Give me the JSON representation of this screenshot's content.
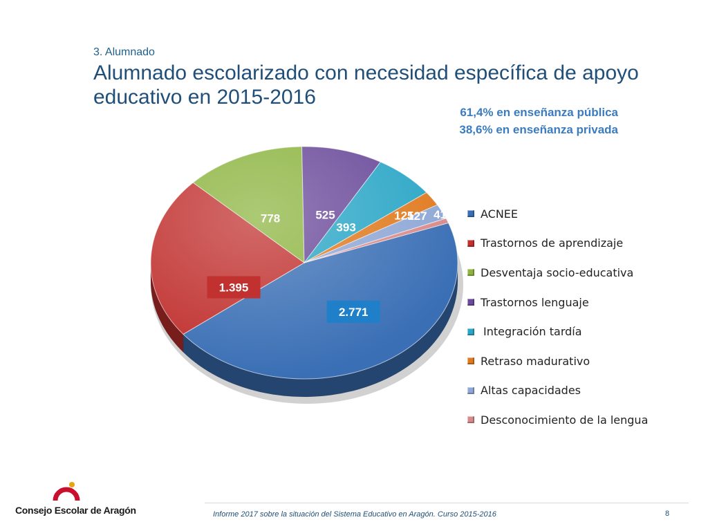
{
  "header": {
    "section": "3. Alumnado",
    "title": "Alumnado escolarizado con necesidad específica de apoyo educativo en 2015-2016"
  },
  "highlights": {
    "public": "61,4% en enseñanza pública",
    "private": "38,6% en enseñanza privada"
  },
  "chart_data": {
    "type": "pie",
    "style": "3d",
    "categories": [
      "ACNEE",
      "Trastornos de aprendizaje",
      "Desventaja socio-educativa",
      "Trastornos lenguaje",
      "Integración tardía",
      "Retraso madurativo",
      "Altas capacidades",
      "Desconocimiento de la lengua"
    ],
    "values": [
      2771,
      1395,
      778,
      525,
      393,
      125,
      127,
      41
    ],
    "data_labels": [
      "2.771",
      "1.395",
      "778",
      "525",
      "393",
      "125",
      "127",
      "41"
    ],
    "colors": [
      "#3a6fb5",
      "#c0312f",
      "#8cb43f",
      "#6a4a9a",
      "#2aa6c6",
      "#e07a1f",
      "#8ea7d6",
      "#d98a8a"
    ],
    "legend_position": "right",
    "title": ""
  },
  "legend": {
    "items": [
      {
        "label": "ACNEE",
        "color": "#3a6fb5"
      },
      {
        "label": "Trastornos de aprendizaje",
        "color": "#c0312f"
      },
      {
        "label": "Desventaja socio-educativa",
        "color": "#8cb43f"
      },
      {
        "label": "Trastornos lenguaje",
        "color": "#6a4a9a"
      },
      {
        "label": "Integración tardía",
        "color": "#2aa6c6"
      },
      {
        "label": "Retraso madurativo",
        "color": "#e07a1f"
      },
      {
        "label": "Altas capacidades",
        "color": "#8ea7d6"
      },
      {
        "label": "Desconocimiento de la lengua",
        "color": "#d98a8a"
      }
    ]
  },
  "footer": {
    "logo_text": "Consejo Escolar de Aragón",
    "report": "Informe 2017 sobre la situación del Sistema Educativo en Aragón. Curso 2015-2016",
    "page": "8"
  }
}
